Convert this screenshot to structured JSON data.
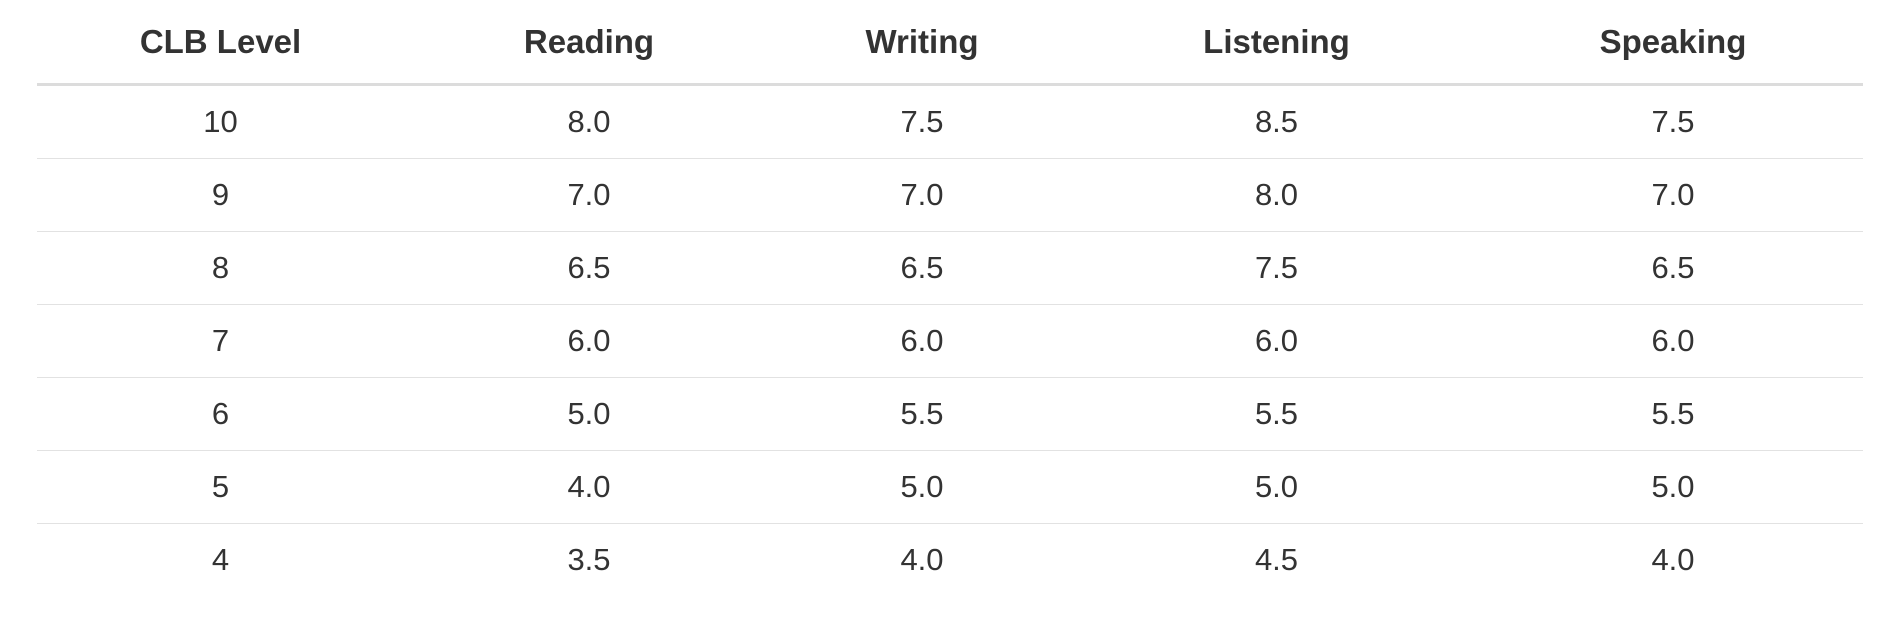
{
  "table": {
    "headers": [
      "CLB Level",
      "Reading",
      "Writing",
      "Listening",
      "Speaking"
    ],
    "rows": [
      [
        "10",
        "8.0",
        "7.5",
        "8.5",
        "7.5"
      ],
      [
        "9",
        "7.0",
        "7.0",
        "8.0",
        "7.0"
      ],
      [
        "8",
        "6.5",
        "6.5",
        "7.5",
        "6.5"
      ],
      [
        "7",
        "6.0",
        "6.0",
        "6.0",
        "6.0"
      ],
      [
        "6",
        "5.0",
        "5.5",
        "5.5",
        "5.5"
      ],
      [
        "5",
        "4.0",
        "5.0",
        "5.0",
        "5.0"
      ],
      [
        "4",
        "3.5",
        "4.0",
        "4.5",
        "4.0"
      ]
    ]
  }
}
